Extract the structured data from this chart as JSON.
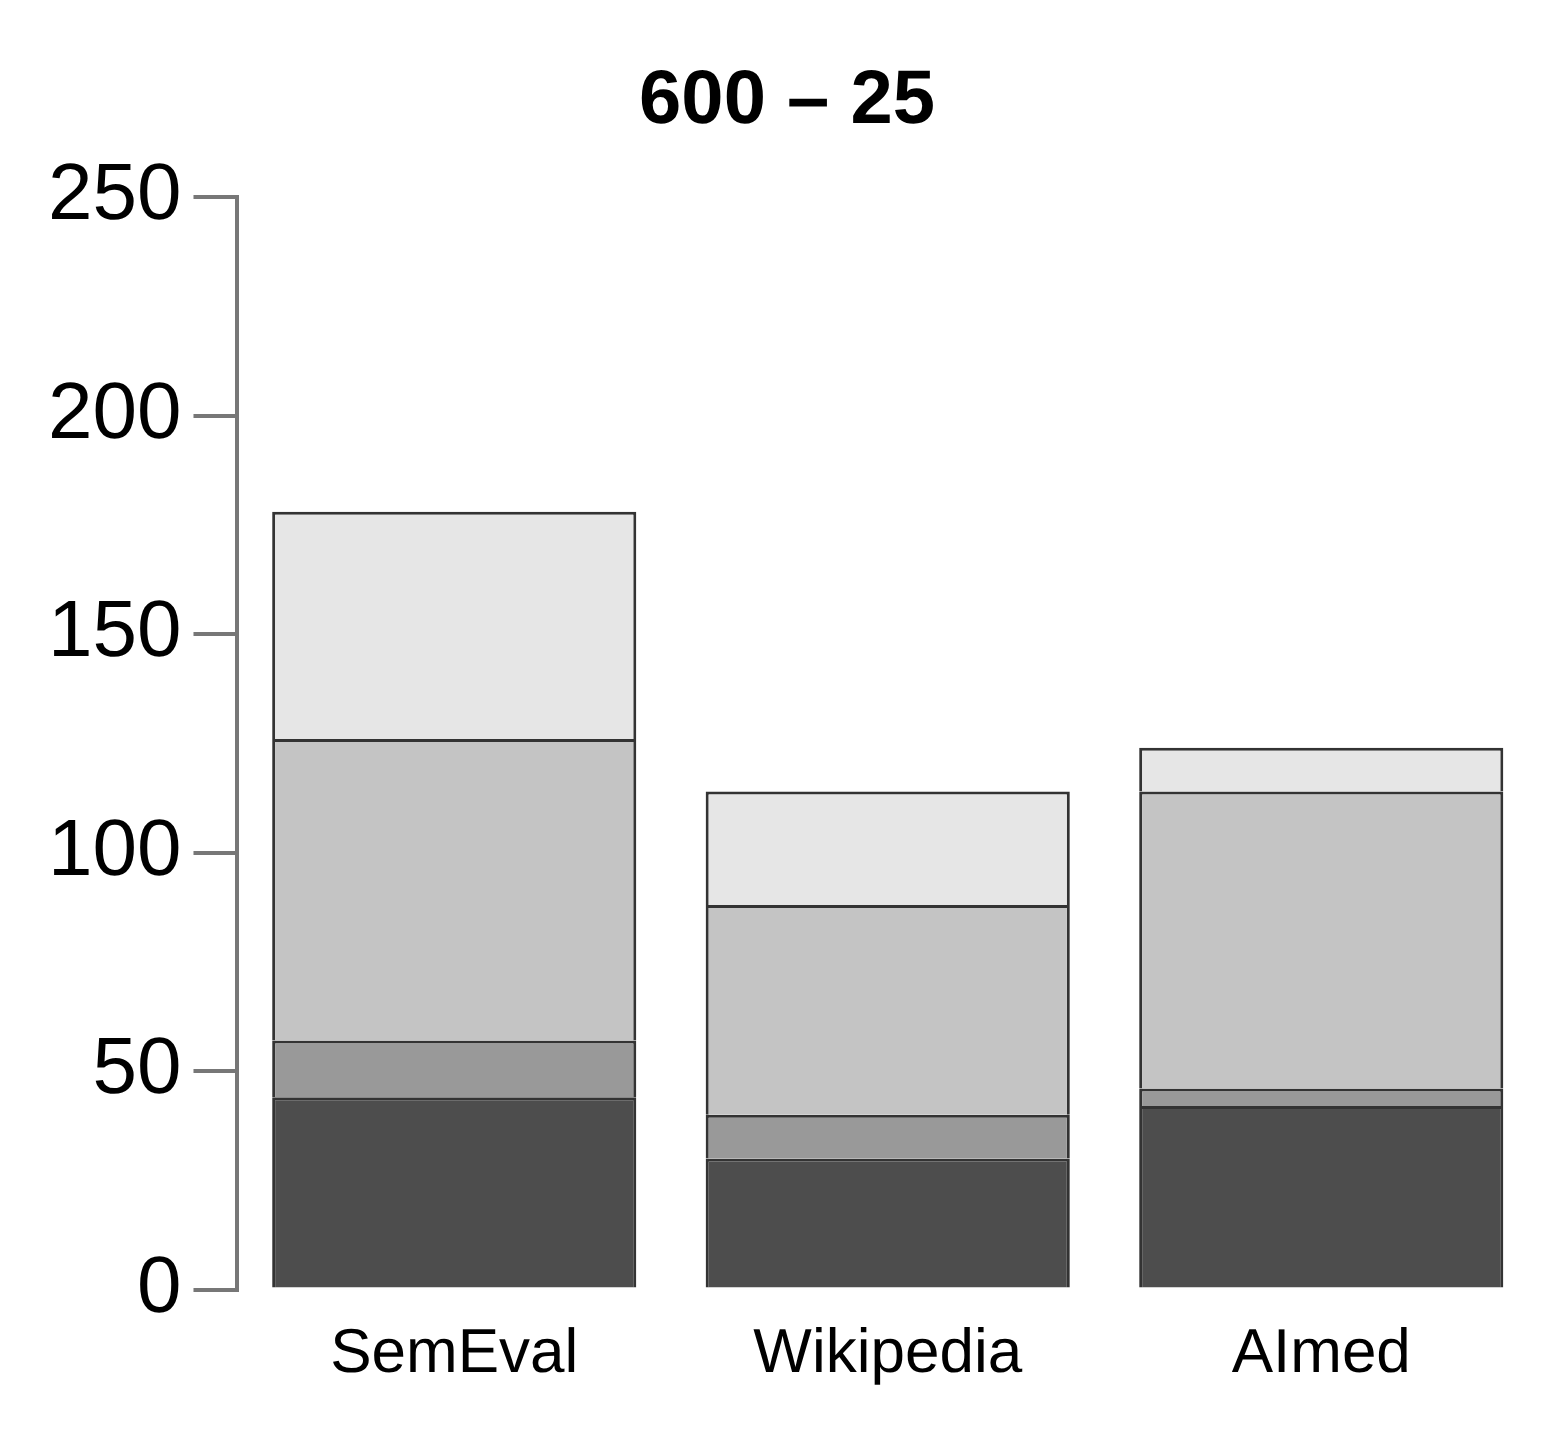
{
  "chart_data": {
    "type": "bar",
    "title": "600 – 25",
    "categories": [
      "SemEval",
      "Wikipedia",
      "AImed"
    ],
    "stacked": true,
    "series": [
      {
        "color": "#4d4d4d",
        "values": [
          44,
          30,
          42
        ]
      },
      {
        "color": "#999999",
        "values": [
          13,
          10,
          4
        ]
      },
      {
        "color": "#c4c4c4",
        "values": [
          69,
          48,
          68
        ]
      },
      {
        "color": "#e6e6e6",
        "values": [
          52,
          26,
          10
        ]
      }
    ],
    "ylim": [
      0,
      250
    ],
    "yticks": [
      0,
      50,
      100,
      150,
      200,
      250
    ],
    "grid": false,
    "legend": false
  }
}
